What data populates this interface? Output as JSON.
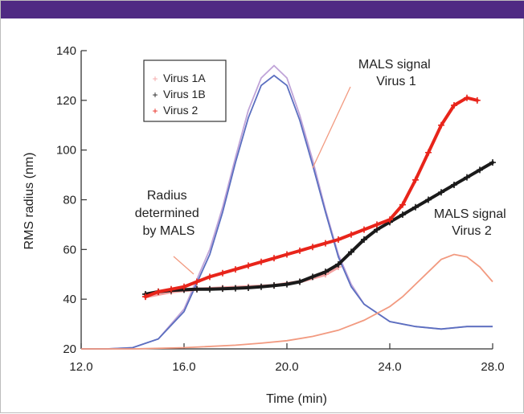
{
  "chart_data": {
    "type": "line",
    "title": "",
    "xlabel": "Time (min)",
    "ylabel": "RMS radius (nm)",
    "xlim": [
      12.0,
      28.0
    ],
    "ylim": [
      20,
      140
    ],
    "x_ticks": [
      12.0,
      16.0,
      20.0,
      24.0,
      28.0
    ],
    "x_tick_labels": [
      "12.0",
      "16.0",
      "20.0",
      "24.0",
      "28.0"
    ],
    "y_ticks": [
      20,
      40,
      60,
      80,
      100,
      120,
      140
    ],
    "y_tick_labels": [
      "20",
      "40",
      "60",
      "80",
      "100",
      "120",
      "140"
    ],
    "grid": false,
    "legend_position": "top-left",
    "legend": [
      "Virus 1A",
      "Virus 1B",
      "Virus 2"
    ],
    "annotations": [
      {
        "id": "malsv1",
        "lines": [
          "MALS signal",
          "Virus 1"
        ]
      },
      {
        "id": "radius",
        "lines": [
          "Radius",
          "determined",
          "by MALS"
        ]
      },
      {
        "id": "malsv2",
        "lines": [
          "MALS signal",
          "Virus 2"
        ]
      }
    ],
    "series": [
      {
        "name": "Virus 1A",
        "kind": "markers",
        "color": "#f4a3a3",
        "x": [
          14.5,
          15.5,
          16.5,
          17.5,
          18.5,
          19.5,
          20.5,
          21.5,
          22.0
        ],
        "y": [
          41,
          43,
          44,
          44.5,
          45,
          45.5,
          47,
          50,
          53
        ]
      },
      {
        "name": "Virus 1B",
        "kind": "markers",
        "color": "#1a1a1a",
        "x": [
          14.5,
          15.0,
          15.5,
          16.0,
          16.5,
          17.0,
          17.5,
          18.0,
          18.5,
          19.0,
          19.5,
          20.0,
          20.5,
          21.0,
          21.5,
          22.0,
          22.5,
          23.0,
          23.5,
          24.0,
          24.5,
          25.0,
          25.5,
          26.0,
          26.5,
          27.0,
          27.5,
          28.0
        ],
        "y": [
          42,
          43,
          43.5,
          43.8,
          44,
          44,
          44.2,
          44.4,
          44.6,
          45,
          45.5,
          46,
          47,
          49,
          51,
          54,
          59,
          64,
          68,
          71,
          74,
          77,
          80,
          83,
          86,
          89,
          92,
          95
        ]
      },
      {
        "name": "Virus 2",
        "kind": "markers",
        "color": "#e8241a",
        "x": [
          14.5,
          15.0,
          15.5,
          16.0,
          16.5,
          17.0,
          17.5,
          18.0,
          18.5,
          19.0,
          19.5,
          20.0,
          20.5,
          21.0,
          21.5,
          22.0,
          22.5,
          23.0,
          23.5,
          24.0,
          24.5,
          25.0,
          25.5,
          26.0,
          26.5,
          27.0,
          27.4
        ],
        "y": [
          41,
          43,
          44,
          45,
          47,
          49,
          50.5,
          52,
          53.5,
          55,
          56.5,
          58,
          59.5,
          61,
          62.5,
          64,
          66,
          68,
          70,
          72,
          78,
          88,
          99,
          110,
          118,
          121,
          120
        ]
      },
      {
        "name": "MALS signal Virus 1 (1A)",
        "kind": "line",
        "color": "#c0a4d8",
        "x": [
          12.0,
          13.0,
          14.0,
          15.0,
          16.0,
          17.0,
          17.5,
          18.0,
          18.5,
          19.0,
          19.5,
          20.0,
          20.5,
          21.0,
          21.5,
          22.0,
          22.5,
          23.0,
          24.0,
          25.0,
          26.0,
          27.0,
          28.0
        ],
        "y": [
          20,
          20,
          20.5,
          24,
          36,
          60,
          77,
          97,
          116,
          129,
          134,
          129,
          114,
          96,
          76,
          58,
          46,
          38,
          31,
          29,
          28,
          29,
          29
        ]
      },
      {
        "name": "MALS signal Virus 1 (1B)",
        "kind": "line",
        "color": "#5b6fc0",
        "x": [
          12.0,
          13.0,
          14.0,
          15.0,
          16.0,
          17.0,
          17.5,
          18.0,
          18.5,
          19.0,
          19.5,
          20.0,
          20.5,
          21.0,
          21.5,
          22.0,
          22.5,
          23.0,
          24.0,
          25.0,
          26.0,
          27.0,
          28.0
        ],
        "y": [
          20,
          20,
          20.5,
          24,
          35,
          58,
          75,
          95,
          113,
          126,
          130,
          126,
          112,
          94,
          75,
          57,
          45,
          38,
          31,
          29,
          28,
          29,
          29
        ]
      },
      {
        "name": "MALS signal Virus 2",
        "kind": "line",
        "color": "#f29a80",
        "x": [
          12.0,
          14.0,
          16.0,
          18.0,
          19.0,
          20.0,
          21.0,
          22.0,
          23.0,
          24.0,
          24.5,
          25.0,
          25.5,
          26.0,
          26.5,
          27.0,
          27.5,
          28.0
        ],
        "y": [
          20,
          20,
          20.5,
          21.5,
          22.3,
          23.3,
          25,
          27.5,
          31.5,
          37,
          41,
          46,
          51,
          56,
          58,
          57,
          53,
          47
        ]
      }
    ]
  }
}
